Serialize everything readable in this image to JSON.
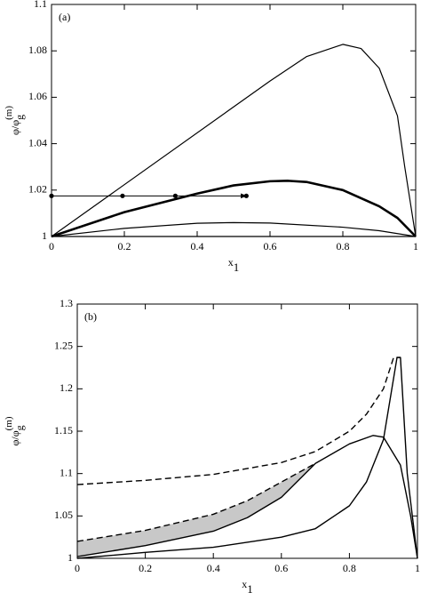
{
  "chart_data": [
    {
      "type": "line",
      "panel_label": "(a)",
      "xlabel": {
        "main": "x",
        "sub": "1"
      },
      "ylabel": {
        "main": "φ/φ",
        "sub": "g",
        "sup": "(m)"
      },
      "xlim": [
        0,
        1
      ],
      "ylim": [
        1,
        1.1
      ],
      "xticks": [
        0,
        0.2,
        0.4,
        0.6,
        0.8,
        1
      ],
      "yticks": [
        1,
        1.02,
        1.04,
        1.06,
        1.08,
        1.1
      ],
      "series": [
        {
          "color": "#000000",
          "width": 1.2,
          "x": [
            0,
            0.6,
            0.7,
            0.8,
            0.85,
            0.9,
            0.95,
            0.97,
            1
          ],
          "values": [
            1,
            1.067,
            1.0775,
            1.0828,
            1.081,
            1.0725,
            1.052,
            1.03,
            1
          ]
        },
        {
          "color": "#000000",
          "width": 2.6,
          "x": [
            0,
            0.2,
            0.4,
            0.5,
            0.6,
            0.65,
            0.7,
            0.8,
            0.9,
            0.95,
            1
          ],
          "values": [
            1,
            1.0105,
            1.0185,
            1.022,
            1.0238,
            1.024,
            1.0235,
            1.02,
            1.013,
            1.008,
            1
          ]
        },
        {
          "color": "#000000",
          "width": 1.2,
          "x": [
            0,
            0.2,
            0.4,
            0.5,
            0.6,
            0.8,
            0.9,
            1
          ],
          "values": [
            1,
            1.0035,
            1.0057,
            1.006,
            1.0058,
            1.004,
            1.0025,
            1
          ]
        },
        {
          "color": "#000000",
          "width": 1.2,
          "x": [
            0,
            1
          ],
          "values": [
            1,
            1
          ]
        },
        {
          "color": "#000000",
          "width": 1,
          "marker": true,
          "arrow": true,
          "x": [
            0,
            0.195,
            0.34,
            0.535
          ],
          "values": [
            1.0175,
            1.0175,
            1.0175,
            1.0175
          ]
        }
      ]
    },
    {
      "type": "line",
      "panel_label": "(b)",
      "xlabel": {
        "main": "x",
        "sub": "1"
      },
      "ylabel": {
        "main": "φ/φ",
        "sub": "g",
        "sup": "(m)"
      },
      "xlim": [
        0,
        1
      ],
      "ylim": [
        1,
        1.3
      ],
      "xticks": [
        0,
        0.2,
        0.4,
        0.6,
        0.8,
        1
      ],
      "yticks": [
        1,
        1.05,
        1.1,
        1.15,
        1.2,
        1.25,
        1.3
      ],
      "shade": {
        "series": [
          1,
          2
        ],
        "color": "#c8c8c8"
      },
      "series": [
        {
          "color": "#000000",
          "width": 1.4,
          "dash": true,
          "x": [
            0,
            0.2,
            0.4,
            0.6,
            0.7,
            0.8,
            0.85,
            0.9,
            0.93,
            0.95
          ],
          "values": [
            1.087,
            1.092,
            1.099,
            1.113,
            1.126,
            1.15,
            1.17,
            1.2,
            1.237,
            1.237
          ]
        },
        {
          "color": "#000000",
          "width": 1.4,
          "dash": true,
          "x": [
            0,
            0.2,
            0.4,
            0.5,
            0.6,
            0.7
          ],
          "values": [
            1.02,
            1.033,
            1.052,
            1.068,
            1.09,
            1.112
          ]
        },
        {
          "color": "#000000",
          "width": 1.4,
          "x": [
            0,
            0.2,
            0.4,
            0.5,
            0.6,
            0.7,
            0.8,
            0.87,
            0.9,
            0.95,
            0.98,
            1
          ],
          "values": [
            1.002,
            1.015,
            1.032,
            1.048,
            1.072,
            1.112,
            1.135,
            1.145,
            1.143,
            1.11,
            1.05,
            1
          ]
        },
        {
          "color": "#000000",
          "width": 1.4,
          "x": [
            0,
            0.2,
            0.4,
            0.6,
            0.7,
            0.8,
            0.85,
            0.9,
            0.94,
            0.95,
            0.97,
            1
          ],
          "values": [
            1,
            1.007,
            1.013,
            1.025,
            1.035,
            1.062,
            1.09,
            1.14,
            1.237,
            1.237,
            1.1,
            1
          ]
        }
      ]
    }
  ]
}
